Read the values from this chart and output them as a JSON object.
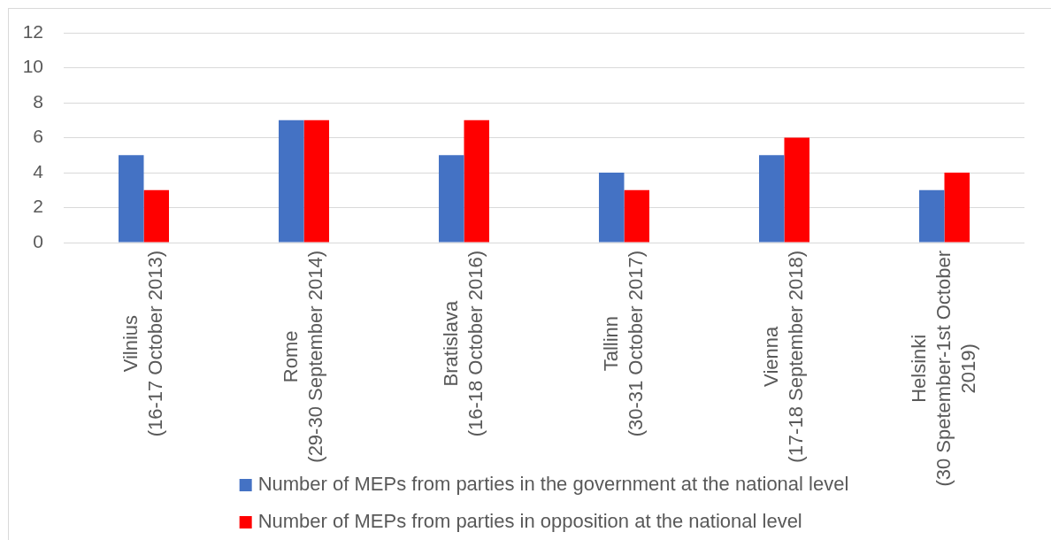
{
  "chart_data": {
    "type": "bar",
    "categories": [
      "Vilnius\n(16-17 October 2013)",
      "Rome\n(29-30 September 2014)",
      "Bratislava\n(16-18 October 2016)",
      "Tallinn\n(30-31 October 2017)",
      "Vienna\n(17-18 September 2018)",
      "Helsinki\n(30 Spetember-1st October\n2019)"
    ],
    "series": [
      {
        "name": "Number of MEPs from parties in the government at the national level",
        "color": "#4472c4",
        "values": [
          5,
          7,
          5,
          4,
          5,
          3
        ]
      },
      {
        "name": "Number of MEPs from parties in opposition at the national level",
        "color": "#ff0000",
        "values": [
          3,
          7,
          7,
          3,
          6,
          4
        ]
      }
    ],
    "ylim": [
      0,
      12
    ],
    "yticks": [
      0,
      2,
      4,
      6,
      8,
      10,
      12
    ],
    "grid": "y",
    "legend": "bottom"
  }
}
